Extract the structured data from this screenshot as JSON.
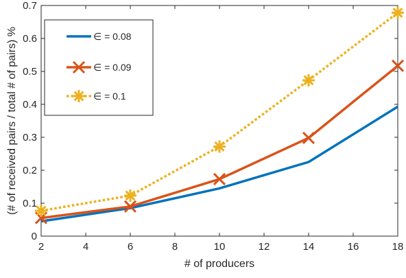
{
  "chart_data": {
    "type": "line",
    "title": "",
    "xlabel": "# of producers",
    "ylabel": "(# of received pairs / total # of pairs) %",
    "x": [
      2,
      6,
      10,
      14,
      18
    ],
    "xlim": [
      2,
      18
    ],
    "ylim": [
      0,
      0.7
    ],
    "xticks": [
      2,
      4,
      6,
      8,
      10,
      12,
      14,
      16,
      18
    ],
    "yticks": [
      0,
      0.1,
      0.2,
      0.3,
      0.4,
      0.5,
      0.6,
      0.7
    ],
    "grid": false,
    "legend_position": "top-left",
    "series": [
      {
        "name": "∈ = 0.08",
        "values": [
          0.045,
          0.085,
          0.145,
          0.225,
          0.393
        ],
        "color": "#0072BD",
        "line_style": "solid",
        "marker": "none"
      },
      {
        "name": "∈ = 0.09",
        "values": [
          0.055,
          0.09,
          0.173,
          0.298,
          0.517
        ],
        "color": "#D95319",
        "line_style": "solid",
        "marker": "x"
      },
      {
        "name": "∈ = 0.1",
        "values": [
          0.077,
          0.123,
          0.272,
          0.473,
          0.678
        ],
        "color": "#EDB120",
        "line_style": "dotted",
        "marker": "asterisk"
      }
    ]
  }
}
